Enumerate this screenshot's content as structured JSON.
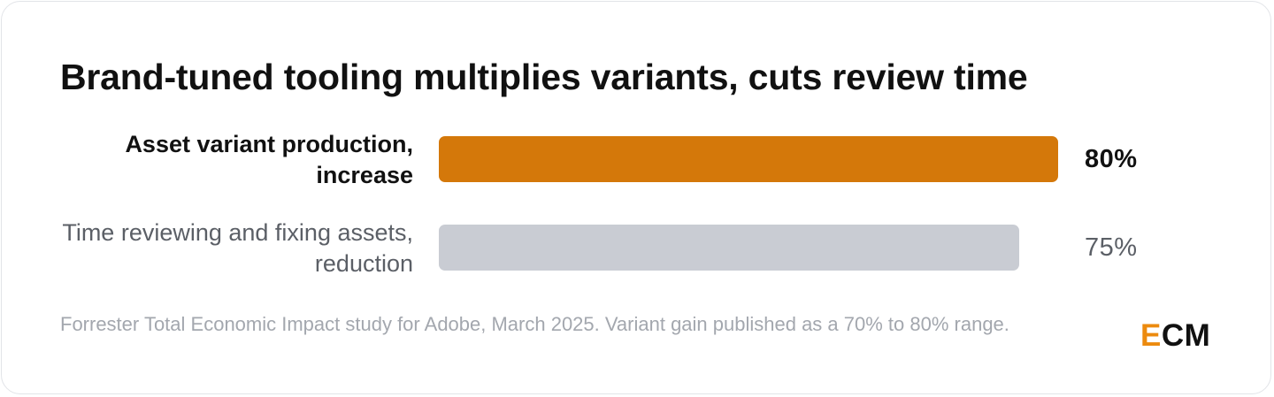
{
  "chart_data": {
    "type": "bar",
    "orientation": "horizontal",
    "title": "Brand-tuned tooling multiplies variants, cuts review time",
    "xlim": [
      0,
      100
    ],
    "grid": false,
    "categories": [
      "Asset variant production, increase",
      "Time reviewing and fixing assets, reduction"
    ],
    "values": [
      80,
      75
    ],
    "value_labels": [
      "80%",
      "75%"
    ],
    "bar_colors": [
      "#d4780a",
      "#c9ccd3"
    ],
    "source": "Forrester Total Economic Impact study for Adobe, March 2025. Variant gain published as a 70% to 80% range."
  },
  "brand": {
    "logo_letters": [
      "E",
      "CM"
    ],
    "logo_accent_color": "#ec8a0e",
    "logo_text_color": "#111111"
  }
}
